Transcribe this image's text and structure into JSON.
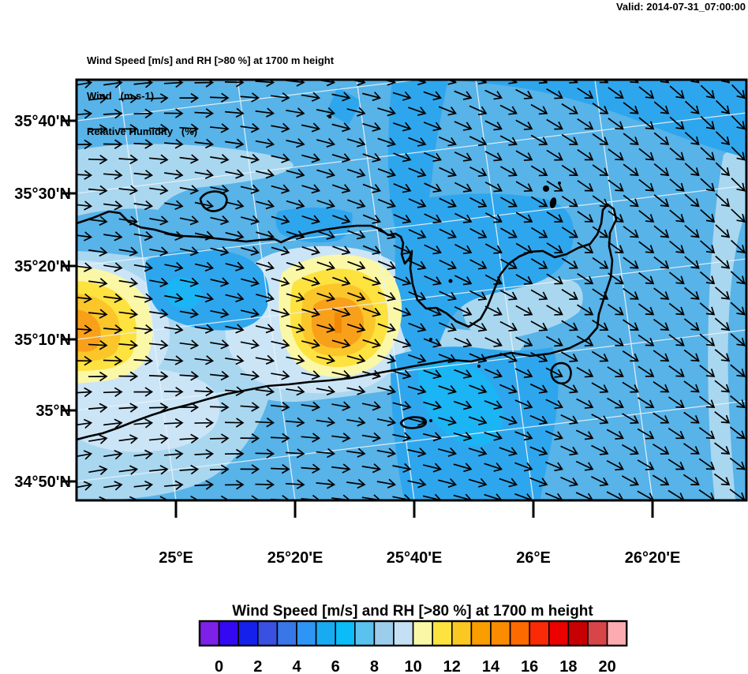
{
  "header": {
    "valid": "Valid: 2014-07-31_07:00:00"
  },
  "titles": {
    "line1": "Wind Speed [m/s] and RH [>80 %] at 1700 m height",
    "line2": "Wind   (m s-1)",
    "line3": "Relative Humidity   (%)"
  },
  "map": {
    "y_tick_labels": [
      "35°40'N",
      "35°30'N",
      "35°20'N",
      "35°10'N",
      "35°N",
      "34°50'N"
    ],
    "x_tick_labels": [
      "25°E",
      "25°20'E",
      "25°40'E",
      "26°E",
      "26°20'E"
    ]
  },
  "palette": {
    "map_base": "#57B3E8",
    "map_deep": "#2EA6ED",
    "map_cyan": "#1BB4F4",
    "map_pale": "#A9D7F0",
    "map_vpale": "#CBE5F7",
    "pale_yellow": "#FAF7A6",
    "yellow": "#FEE23F",
    "gold": "#FBC62A",
    "orange": "#F9A01B",
    "deep_orange": "#F08908",
    "coast": "#000000",
    "graticule": "#E9F2FA",
    "frame": "#000000"
  },
  "colorbar": {
    "title": "Wind Speed [m/s] and RH [>80 %] at 1700 m height",
    "tick_labels": [
      "0",
      "2",
      "4",
      "6",
      "8",
      "10",
      "12",
      "14",
      "16",
      "18",
      "20"
    ],
    "cell_colors": [
      "#7D20E8",
      "#3508F2",
      "#1520EC",
      "#3A50E0",
      "#3877E8",
      "#2E95F5",
      "#18ABF2",
      "#0ABCF8",
      "#5BC1EF",
      "#9CCDEB",
      "#C5DFF4",
      "#FAF8A6",
      "#FEE23F",
      "#FBC722",
      "#FA9D00",
      "#FB8C00",
      "#FC6A00",
      "#F92A05",
      "#ED0000",
      "#C80003",
      "#D84549",
      "#FCACB0"
    ]
  },
  "chart_data": {
    "type": "heatmap",
    "title": "Wind Speed [m/s] and RH [>80 %] at 1700 m height",
    "subtitle_lines": [
      "Wind   (m s-1)",
      "Relative Humidity   (%)"
    ],
    "valid_time": "Valid: 2014-07-31_07:00:00",
    "x_tick_labels": [
      "25°E",
      "25°20'E",
      "25°40'E",
      "26°E",
      "26°20'E"
    ],
    "y_tick_labels": [
      "35°40'N",
      "35°30'N",
      "35°20'N",
      "35°10'N",
      "35°N",
      "34°50'N"
    ],
    "colorbar": {
      "title": "Wind Speed [m/s] and RH [>80 %] at 1700 m height",
      "units": "m/s",
      "labeled_values": [
        0,
        2,
        4,
        6,
        8,
        10,
        12,
        14,
        16,
        18,
        20
      ],
      "interval_per_cell": 1,
      "n_cells": 22,
      "has_under_range_cell": true,
      "has_over_range_cell": true
    },
    "fill_field": {
      "variable": "wind speed at 1700 m",
      "background_value_range_ms": [
        8,
        9
      ],
      "maxima": [
        {
          "near": "west edge of domain, ~35°12'N",
          "value_range_ms": [
            14,
            15
          ]
        },
        {
          "near": "~25°28'E, 35°12'N (central island interior)",
          "value_range_ms": [
            14,
            15
          ]
        }
      ],
      "minima": [
        {
          "near": "gulf / northeast of island, ~25°45'E–26°05'E, 35°15'N–35°25'N",
          "value_range_ms": [
            6,
            8
          ]
        },
        {
          "near": "south of island, ~25°40'E, 35°00'N",
          "value_range_ms": [
            6,
            8
          ]
        }
      ]
    },
    "vector_field": {
      "variable": "wind",
      "units": "m s-1",
      "pattern": "arrows point east-northeast in the west of the domain, veering to southeast in the east"
    },
    "geography": "elongated island coastline spanning the domain (Crete-like), with small offshore islets",
    "grid": "faint light graticule lines at labeled meridians and parallels, slightly tilted"
  }
}
